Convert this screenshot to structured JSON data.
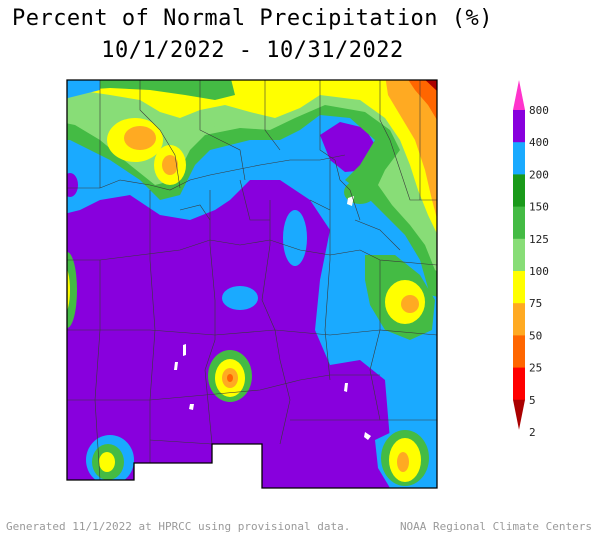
{
  "title_line1": "Percent of Normal Precipitation (%)",
  "title_line2": "10/1/2022 - 10/31/2022",
  "legend": {
    "labels": [
      "800",
      "400",
      "200",
      "150",
      "125",
      "100",
      "75",
      "50",
      "25",
      "5",
      "2"
    ],
    "colors": {
      "c800": "#ff33cc",
      "c400": "#8800dd",
      "c200": "#1aaaff",
      "c150": "#1a9a1a",
      "c125": "#44bb44",
      "c100": "#88dd77",
      "c75": "#ffff00",
      "c50": "#ffaa22",
      "c25": "#ff6600",
      "c5": "#ff0000",
      "c2": "#aa0000"
    }
  },
  "footer_left": "Generated 11/1/2022 at HPRCC using provisional data.",
  "footer_right": "NOAA Regional Climate Centers"
}
